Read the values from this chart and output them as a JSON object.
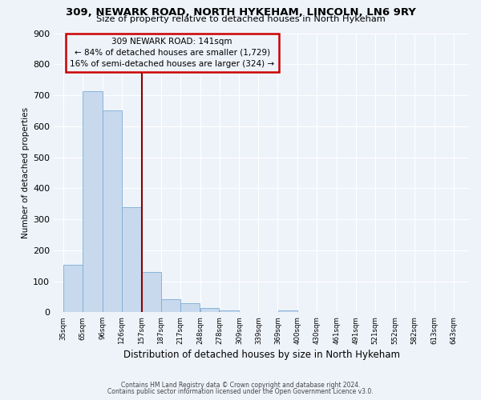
{
  "title1": "309, NEWARK ROAD, NORTH HYKEHAM, LINCOLN, LN6 9RY",
  "title2": "Size of property relative to detached houses in North Hykeham",
  "xlabel": "Distribution of detached houses by size in North Hykeham",
  "ylabel": "Number of detached properties",
  "bar_color": "#c8d9ed",
  "bar_edgecolor": "#7aadd4",
  "bin_labels": [
    "35sqm",
    "65sqm",
    "96sqm",
    "126sqm",
    "157sqm",
    "187sqm",
    "217sqm",
    "248sqm",
    "278sqm",
    "309sqm",
    "339sqm",
    "369sqm",
    "400sqm",
    "430sqm",
    "461sqm",
    "491sqm",
    "521sqm",
    "552sqm",
    "582sqm",
    "613sqm",
    "643sqm"
  ],
  "bar_values": [
    152,
    712,
    652,
    340,
    130,
    43,
    30,
    13,
    5,
    0,
    0,
    5,
    0,
    0,
    0,
    0,
    0,
    0,
    0,
    0,
    0
  ],
  "ylim": [
    0,
    900
  ],
  "yticks": [
    0,
    100,
    200,
    300,
    400,
    500,
    600,
    700,
    800,
    900
  ],
  "vline_color": "#8b0000",
  "annotation_title": "309 NEWARK ROAD: 141sqm",
  "annotation_line1": "← 84% of detached houses are smaller (1,729)",
  "annotation_line2": "16% of semi-detached houses are larger (324) →",
  "annotation_box_edgecolor": "#cc0000",
  "footnote1": "Contains HM Land Registry data © Crown copyright and database right 2024.",
  "footnote2": "Contains public sector information licensed under the Open Government Licence v3.0.",
  "bg_color": "#eef3fa",
  "grid_color": "#d8e4f0"
}
